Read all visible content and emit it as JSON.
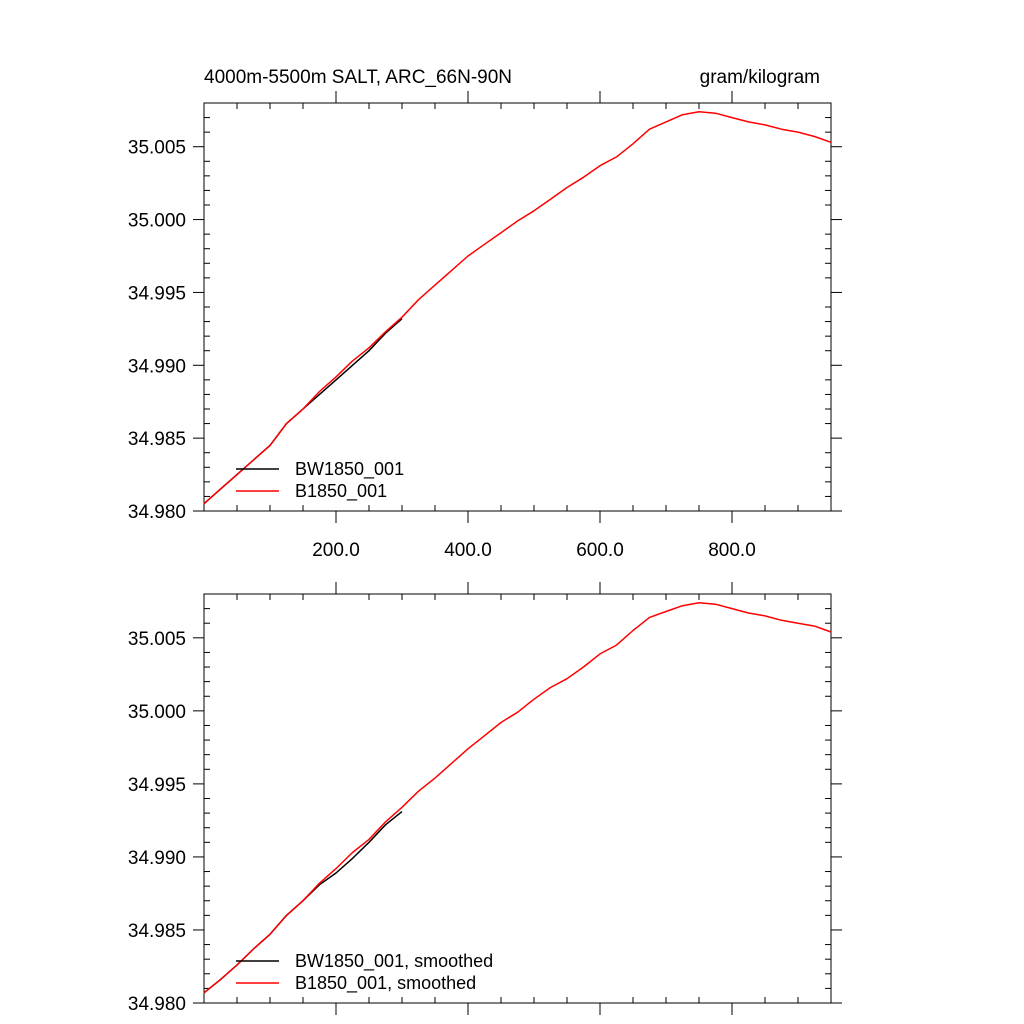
{
  "chart_data": [
    {
      "type": "line",
      "title_left": "4000m-5500m SALT, ARC_66N-90N",
      "title_right": "gram/kilogram",
      "xlabel": "",
      "ylabel": "",
      "xlim": [
        0,
        950
      ],
      "ylim": [
        34.98,
        35.008
      ],
      "x_ticks": [
        200,
        400,
        600,
        800
      ],
      "x_tick_labels": [
        "200.0",
        "400.0",
        "600.0",
        "800.0"
      ],
      "y_ticks": [
        34.98,
        34.985,
        34.99,
        34.995,
        35.0,
        35.005
      ],
      "y_tick_labels": [
        "34.980",
        "34.985",
        "34.990",
        "34.995",
        "35.000",
        "35.005"
      ],
      "legend_placement": "bottom-left",
      "series": [
        {
          "name": "BW1850_001",
          "color": "#000000",
          "x": [
            0,
            25,
            50,
            75,
            100,
            125,
            150,
            175,
            200,
            225,
            250,
            275,
            300
          ],
          "y": [
            34.9805,
            34.9815,
            34.9825,
            34.9835,
            34.9845,
            34.986,
            34.987,
            34.988,
            34.989,
            34.99,
            34.991,
            34.9922,
            34.9932
          ]
        },
        {
          "name": "B1850_001",
          "color": "#ff0000",
          "x": [
            0,
            25,
            50,
            75,
            100,
            125,
            150,
            175,
            200,
            225,
            250,
            275,
            300,
            325,
            350,
            375,
            400,
            425,
            450,
            475,
            500,
            525,
            550,
            575,
            600,
            625,
            650,
            675,
            700,
            725,
            750,
            775,
            800,
            825,
            850,
            875,
            900,
            925,
            950
          ],
          "y": [
            34.9805,
            34.9815,
            34.9825,
            34.9835,
            34.9845,
            34.986,
            34.987,
            34.9882,
            34.9892,
            34.9903,
            34.9912,
            34.9923,
            34.9933,
            34.9945,
            34.9955,
            34.9965,
            34.9975,
            34.9983,
            34.9991,
            34.9999,
            35.0006,
            35.0014,
            35.0022,
            35.0029,
            35.0037,
            35.0043,
            35.0052,
            35.0062,
            35.0067,
            35.0072,
            35.0074,
            35.0073,
            35.007,
            35.0067,
            35.0065,
            35.0062,
            35.006,
            35.0057,
            35.0053
          ]
        }
      ]
    },
    {
      "type": "line",
      "xlabel": "",
      "ylabel": "",
      "xlim": [
        0,
        950
      ],
      "ylim": [
        34.98,
        35.008
      ],
      "x_ticks": [
        200,
        400,
        600,
        800
      ],
      "y_ticks": [
        34.98,
        34.985,
        34.99,
        34.995,
        35.0,
        35.005
      ],
      "y_tick_labels": [
        "34.980",
        "34.985",
        "34.990",
        "34.995",
        "35.000",
        "35.005"
      ],
      "legend_placement": "bottom-left",
      "series": [
        {
          "name": "BW1850_001, smoothed",
          "color": "#000000",
          "x": [
            0,
            25,
            50,
            75,
            100,
            125,
            150,
            175,
            200,
            225,
            250,
            275,
            300
          ],
          "y": [
            34.9807,
            34.9816,
            34.9826,
            34.9837,
            34.9847,
            34.986,
            34.987,
            34.9881,
            34.9889,
            34.9899,
            34.991,
            34.9922,
            34.9931
          ]
        },
        {
          "name": "B1850_001, smoothed",
          "color": "#ff0000",
          "x": [
            0,
            25,
            50,
            75,
            100,
            125,
            150,
            175,
            200,
            225,
            250,
            275,
            300,
            325,
            350,
            375,
            400,
            425,
            450,
            475,
            500,
            525,
            550,
            575,
            600,
            625,
            650,
            675,
            700,
            725,
            750,
            775,
            800,
            825,
            850,
            875,
            900,
            925,
            950
          ],
          "y": [
            34.9807,
            34.9816,
            34.9826,
            34.9837,
            34.9847,
            34.986,
            34.987,
            34.9882,
            34.9892,
            34.9903,
            34.9912,
            34.9924,
            34.9934,
            34.9945,
            34.9954,
            34.9964,
            34.9974,
            34.9983,
            34.9992,
            34.9999,
            35.0008,
            35.0016,
            35.0022,
            35.003,
            35.0039,
            35.0045,
            35.0055,
            35.0064,
            35.0068,
            35.0072,
            35.0074,
            35.0073,
            35.007,
            35.0067,
            35.0065,
            35.0062,
            35.006,
            35.0058,
            35.0054
          ]
        }
      ]
    }
  ]
}
